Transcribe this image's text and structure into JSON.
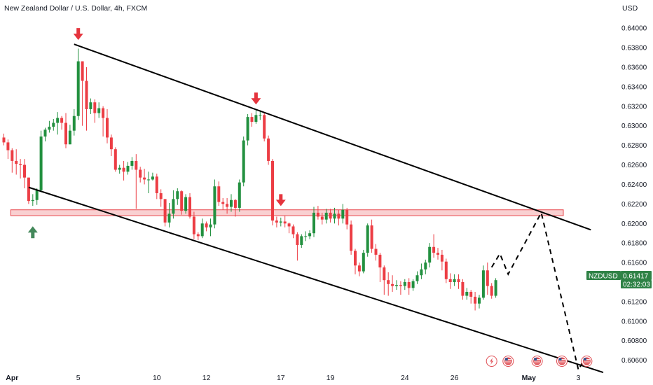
{
  "header": {
    "title": "New Zealand Dollar / U.S. Dollar, 4h, FXCM",
    "currency": "USD"
  },
  "price_tag": {
    "symbol": "NZDUSD",
    "price": "0.61417",
    "countdown": "02:32:03"
  },
  "colors": {
    "up": "#22903f",
    "down": "#ec3d44",
    "trend": "#000000",
    "zone_fill": "#f7c4c6",
    "zone_border": "#e8474d",
    "arrow_down": "#e5343d",
    "arrow_up": "#43885a",
    "axis_text": "#131722",
    "price_tag_bg": "#2f8246"
  },
  "chart_data": {
    "type": "candlestick",
    "ylim": [
      0.6049,
      0.6418
    ],
    "yticks": [
      "0.64000",
      "0.63800",
      "0.63600",
      "0.63400",
      "0.63200",
      "0.63000",
      "0.62800",
      "0.62600",
      "0.62400",
      "0.62200",
      "0.62000",
      "0.61800",
      "0.61600",
      "0.61400",
      "0.61200",
      "0.61000",
      "0.60800",
      "0.60600"
    ],
    "xticks": [
      {
        "label": "Apr",
        "bold": true,
        "bar": 2
      },
      {
        "label": "5",
        "bold": false,
        "bar": 18
      },
      {
        "label": "10",
        "bold": false,
        "bar": 37
      },
      {
        "label": "12",
        "bold": false,
        "bar": 49
      },
      {
        "label": "17",
        "bold": false,
        "bar": 67
      },
      {
        "label": "19",
        "bold": false,
        "bar": 79
      },
      {
        "label": "24",
        "bold": false,
        "bar": 97
      },
      {
        "label": "26",
        "bold": false,
        "bar": 109
      },
      {
        "label": "May",
        "bold": true,
        "bar": 127
      },
      {
        "label": "3",
        "bold": false,
        "bar": 139
      }
    ],
    "candles": [
      [
        0.6288,
        0.6283,
        0.628,
        0.6292
      ],
      [
        0.6283,
        0.6275,
        0.6266,
        0.6286
      ],
      [
        0.6275,
        0.6264,
        0.6252,
        0.6277
      ],
      [
        0.6264,
        0.6261,
        0.625,
        0.6276
      ],
      [
        0.6261,
        0.626,
        0.6246,
        0.6266
      ],
      [
        0.626,
        0.6247,
        0.6236,
        0.6266
      ],
      [
        0.6247,
        0.6223,
        0.622,
        0.6247
      ],
      [
        0.6223,
        0.6224,
        0.6218,
        0.623
      ],
      [
        0.6224,
        0.6234,
        0.6219,
        0.6236
      ],
      [
        0.6234,
        0.6289,
        0.6232,
        0.6295
      ],
      [
        0.6289,
        0.6296,
        0.6284,
        0.6298
      ],
      [
        0.6296,
        0.6299,
        0.6293,
        0.6305
      ],
      [
        0.6299,
        0.6303,
        0.6295,
        0.6307
      ],
      [
        0.6303,
        0.6308,
        0.6291,
        0.6314
      ],
      [
        0.6308,
        0.6303,
        0.6296,
        0.631
      ],
      [
        0.6303,
        0.6281,
        0.6277,
        0.6313
      ],
      [
        0.6281,
        0.6295,
        0.6281,
        0.6301
      ],
      [
        0.6295,
        0.631,
        0.629,
        0.6317
      ],
      [
        0.631,
        0.6366,
        0.6306,
        0.6379
      ],
      [
        0.6366,
        0.6346,
        0.63,
        0.6366
      ],
      [
        0.6346,
        0.6317,
        0.6295,
        0.636
      ],
      [
        0.6317,
        0.6324,
        0.6312,
        0.6328
      ],
      [
        0.6324,
        0.6313,
        0.6303,
        0.6327
      ],
      [
        0.6313,
        0.6318,
        0.6308,
        0.6324
      ],
      [
        0.6318,
        0.6308,
        0.6289,
        0.632
      ],
      [
        0.6308,
        0.6288,
        0.6282,
        0.6317
      ],
      [
        0.6288,
        0.6276,
        0.6269,
        0.6291
      ],
      [
        0.6276,
        0.6255,
        0.6253,
        0.6278
      ],
      [
        0.6255,
        0.6257,
        0.6251,
        0.626
      ],
      [
        0.6257,
        0.6253,
        0.6244,
        0.6264
      ],
      [
        0.6253,
        0.6259,
        0.625,
        0.6263
      ],
      [
        0.6259,
        0.6264,
        0.6255,
        0.6268
      ],
      [
        0.6264,
        0.6255,
        0.6215,
        0.6271
      ],
      [
        0.6255,
        0.6247,
        0.6242,
        0.6258
      ],
      [
        0.6247,
        0.6245,
        0.624,
        0.6256
      ],
      [
        0.6245,
        0.6245,
        0.6231,
        0.6253
      ],
      [
        0.6245,
        0.6248,
        0.6244,
        0.6252
      ],
      [
        0.6248,
        0.6231,
        0.6225,
        0.6251
      ],
      [
        0.6231,
        0.6225,
        0.6217,
        0.6235
      ],
      [
        0.6225,
        0.6201,
        0.6197,
        0.6225
      ],
      [
        0.6201,
        0.621,
        0.6196,
        0.6221
      ],
      [
        0.621,
        0.6225,
        0.6205,
        0.6234
      ],
      [
        0.6225,
        0.6233,
        0.6219,
        0.6236
      ],
      [
        0.6233,
        0.6213,
        0.6209,
        0.6234
      ],
      [
        0.6213,
        0.6227,
        0.621,
        0.623
      ],
      [
        0.6227,
        0.6207,
        0.6205,
        0.6231
      ],
      [
        0.6207,
        0.6189,
        0.6184,
        0.6212
      ],
      [
        0.6189,
        0.6187,
        0.6183,
        0.6191
      ],
      [
        0.6187,
        0.62,
        0.6185,
        0.6205
      ],
      [
        0.62,
        0.6196,
        0.6192,
        0.6202
      ],
      [
        0.6196,
        0.6199,
        0.6187,
        0.6205
      ],
      [
        0.6199,
        0.6238,
        0.6195,
        0.6245
      ],
      [
        0.6238,
        0.6222,
        0.6218,
        0.6243
      ],
      [
        0.6222,
        0.622,
        0.6214,
        0.6226
      ],
      [
        0.622,
        0.6217,
        0.621,
        0.6226
      ],
      [
        0.6217,
        0.6224,
        0.6212,
        0.623
      ],
      [
        0.6224,
        0.6216,
        0.6207,
        0.6225
      ],
      [
        0.6216,
        0.6242,
        0.6212,
        0.6245
      ],
      [
        0.6242,
        0.6285,
        0.6238,
        0.6289
      ],
      [
        0.6285,
        0.6309,
        0.628,
        0.6312
      ],
      [
        0.6309,
        0.6304,
        0.6299,
        0.6313
      ],
      [
        0.6304,
        0.6311,
        0.6302,
        0.6317
      ],
      [
        0.6311,
        0.6311,
        0.6306,
        0.6316
      ],
      [
        0.6311,
        0.6287,
        0.6284,
        0.6313
      ],
      [
        0.6287,
        0.6264,
        0.626,
        0.629
      ],
      [
        0.6264,
        0.6203,
        0.6198,
        0.6266
      ],
      [
        0.6203,
        0.6201,
        0.6196,
        0.6207
      ],
      [
        0.6201,
        0.6202,
        0.6197,
        0.6206
      ],
      [
        0.6202,
        0.62,
        0.6196,
        0.6208
      ],
      [
        0.62,
        0.6197,
        0.619,
        0.6201
      ],
      [
        0.6197,
        0.6189,
        0.6185,
        0.6199
      ],
      [
        0.6189,
        0.6178,
        0.6162,
        0.6191
      ],
      [
        0.6178,
        0.6187,
        0.6175,
        0.6189
      ],
      [
        0.6187,
        0.6187,
        0.6182,
        0.6192
      ],
      [
        0.6187,
        0.619,
        0.6184,
        0.6193
      ],
      [
        0.619,
        0.6211,
        0.6186,
        0.6217
      ],
      [
        0.6211,
        0.6207,
        0.6204,
        0.6218
      ],
      [
        0.6207,
        0.6204,
        0.6199,
        0.6211
      ],
      [
        0.6204,
        0.6211,
        0.62,
        0.6215
      ],
      [
        0.6211,
        0.6205,
        0.6201,
        0.6215
      ],
      [
        0.6205,
        0.621,
        0.62,
        0.6216
      ],
      [
        0.621,
        0.6205,
        0.6198,
        0.6214
      ],
      [
        0.6205,
        0.6214,
        0.62,
        0.622
      ],
      [
        0.6214,
        0.6199,
        0.6194,
        0.6216
      ],
      [
        0.6199,
        0.6172,
        0.6168,
        0.6203
      ],
      [
        0.6172,
        0.6157,
        0.6148,
        0.6174
      ],
      [
        0.6157,
        0.6151,
        0.6146,
        0.616
      ],
      [
        0.6151,
        0.617,
        0.6149,
        0.6173
      ],
      [
        0.617,
        0.6198,
        0.6166,
        0.62
      ],
      [
        0.6198,
        0.6174,
        0.617,
        0.6204
      ],
      [
        0.6174,
        0.6168,
        0.6162,
        0.6179
      ],
      [
        0.6168,
        0.6155,
        0.614,
        0.617
      ],
      [
        0.6155,
        0.6142,
        0.6127,
        0.6157
      ],
      [
        0.6142,
        0.6138,
        0.6126,
        0.615
      ],
      [
        0.6138,
        0.6136,
        0.613,
        0.6147
      ],
      [
        0.6136,
        0.6137,
        0.6132,
        0.6142
      ],
      [
        0.6137,
        0.6136,
        0.6127,
        0.6141
      ],
      [
        0.6136,
        0.614,
        0.6132,
        0.6143
      ],
      [
        0.614,
        0.6134,
        0.6127,
        0.6144
      ],
      [
        0.6134,
        0.6141,
        0.6131,
        0.6143
      ],
      [
        0.6141,
        0.6147,
        0.6138,
        0.6151
      ],
      [
        0.6147,
        0.6153,
        0.6143,
        0.6159
      ],
      [
        0.6153,
        0.616,
        0.6148,
        0.6163
      ],
      [
        0.616,
        0.6176,
        0.6155,
        0.618
      ],
      [
        0.6176,
        0.617,
        0.6165,
        0.6189
      ],
      [
        0.617,
        0.6168,
        0.6163,
        0.6175
      ],
      [
        0.6168,
        0.6161,
        0.6152,
        0.6173
      ],
      [
        0.6161,
        0.6143,
        0.6139,
        0.6164
      ],
      [
        0.6143,
        0.614,
        0.6133,
        0.6149
      ],
      [
        0.614,
        0.6143,
        0.6136,
        0.6148
      ],
      [
        0.6143,
        0.614,
        0.6133,
        0.6148
      ],
      [
        0.614,
        0.6126,
        0.6122,
        0.6143
      ],
      [
        0.6126,
        0.613,
        0.6122,
        0.6134
      ],
      [
        0.613,
        0.6125,
        0.6118,
        0.6132
      ],
      [
        0.6125,
        0.6118,
        0.6111,
        0.613
      ],
      [
        0.6118,
        0.6124,
        0.6113,
        0.6127
      ],
      [
        0.6124,
        0.6152,
        0.6122,
        0.6157
      ],
      [
        0.6152,
        0.6136,
        0.6127,
        0.616
      ],
      [
        0.6136,
        0.6126,
        0.6123,
        0.6139
      ],
      [
        0.6126,
        0.6142,
        0.6124,
        0.6144
      ]
    ],
    "trendlines": [
      {
        "name": "upper-channel-line",
        "from": [
          17,
          0.63835
        ],
        "to": [
          142,
          0.61935
        ]
      },
      {
        "name": "lower-channel-line",
        "from": [
          6,
          0.6237
        ],
        "to": [
          145,
          0.60475
        ]
      }
    ],
    "zone": {
      "from_bar": 2,
      "to_bar": 135,
      "top": 0.6214,
      "bottom": 0.6208
    },
    "projection": [
      [
        118,
        0.61551
      ],
      [
        120,
        0.61691
      ],
      [
        122,
        0.61481
      ],
      [
        130,
        0.62111
      ],
      [
        139,
        0.60501
      ],
      [
        140,
        0.60581
      ]
    ],
    "signals": [
      {
        "name": "down-arrow-1",
        "bar": 18,
        "price": 0.639,
        "dir": "down"
      },
      {
        "name": "down-arrow-2",
        "bar": 61,
        "price": 0.6324,
        "dir": "down"
      },
      {
        "name": "down-arrow-3",
        "bar": 67,
        "price": 0.622,
        "dir": "down"
      },
      {
        "name": "up-arrow-1",
        "bar": 7,
        "price": 0.6195,
        "dir": "up"
      }
    ],
    "events": [
      {
        "name": "event-lightning-icon",
        "bar": 118,
        "type": "bolt"
      },
      {
        "name": "event-us-flag-icon-1",
        "bar": 122,
        "type": "flag"
      },
      {
        "name": "event-us-flag-icon-2",
        "bar": 129,
        "type": "flag"
      },
      {
        "name": "event-us-flag-icon-3",
        "bar": 135,
        "type": "flag"
      },
      {
        "name": "event-us-flag-icon-4",
        "bar": 141,
        "type": "flag"
      }
    ],
    "current_price": 0.61417
  }
}
